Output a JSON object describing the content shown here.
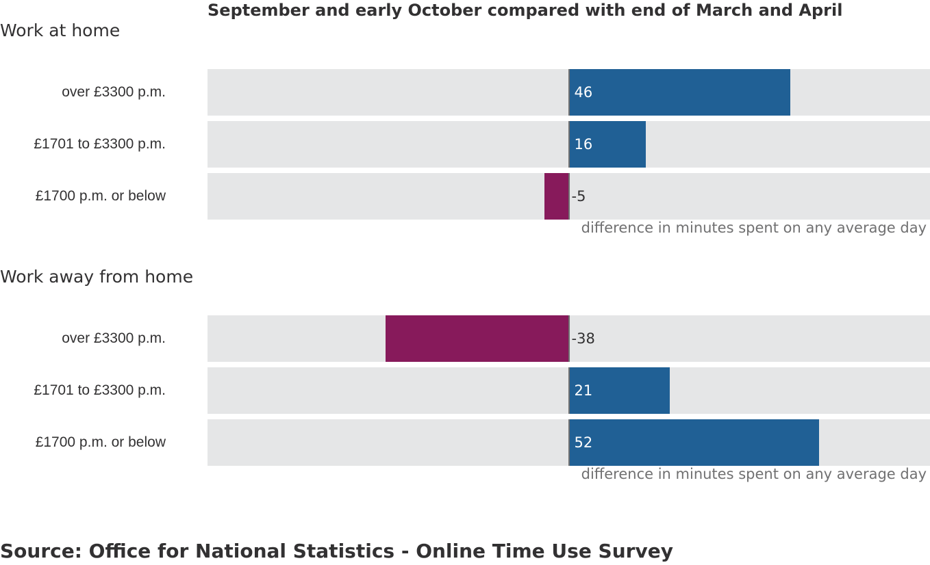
{
  "title": "September and early October compared with end of March and April",
  "source": "Source: Office for National Statistics - Online Time Use Survey",
  "colors": {
    "positive": "#206095",
    "negative": "#871a5b",
    "track": "#e5e6e7",
    "zero_line": "#707071"
  },
  "chart_data": [
    {
      "type": "bar",
      "orientation": "horizontal",
      "title": "Work at home",
      "xlabel": "difference in minutes spent on any average day",
      "xlim": [
        -75,
        75
      ],
      "categories": [
        "over £3300 p.m.",
        "£1701 to £3300 p.m.",
        "£1700 p.m. or below"
      ],
      "values": [
        46,
        16,
        -5
      ],
      "data_labels": [
        "46",
        "16",
        "-5"
      ]
    },
    {
      "type": "bar",
      "orientation": "horizontal",
      "title": "Work away from home",
      "xlabel": "difference in minutes spent on any average day",
      "xlim": [
        -75,
        75
      ],
      "categories": [
        "over £3300 p.m.",
        "£1701 to £3300 p.m.",
        "£1700 p.m. or below"
      ],
      "values": [
        -38,
        21,
        52
      ],
      "data_labels": [
        "-38",
        "21",
        "52"
      ]
    }
  ]
}
